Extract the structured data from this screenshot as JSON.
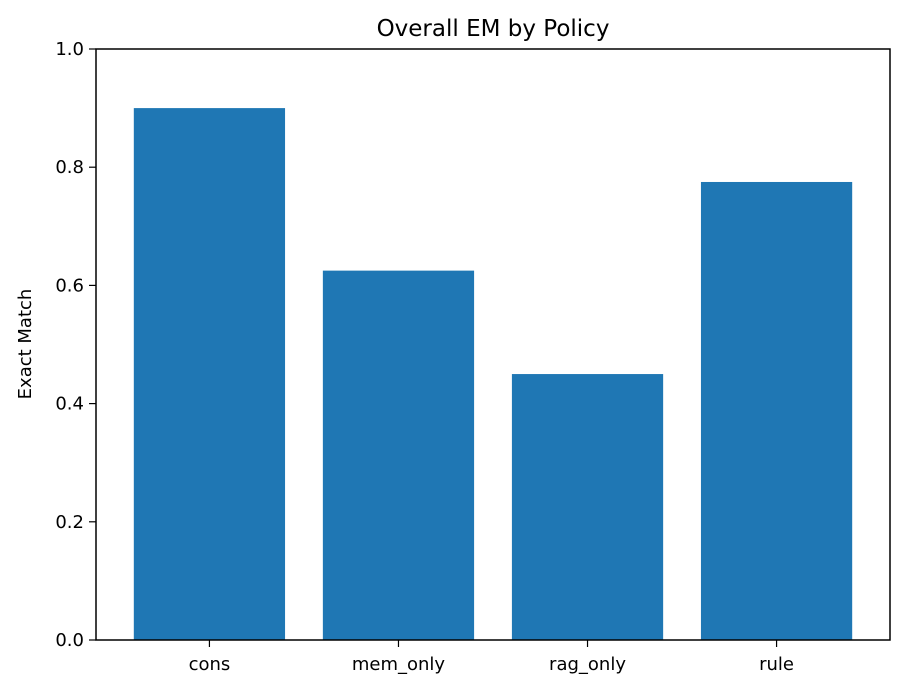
{
  "chart_data": {
    "type": "bar",
    "title": "Overall EM by Policy",
    "xlabel": "",
    "ylabel": "Exact Match",
    "categories": [
      "cons",
      "mem_only",
      "rag_only",
      "rule"
    ],
    "values": [
      0.9,
      0.625,
      0.45,
      0.775
    ],
    "ylim": [
      0.0,
      1.0
    ],
    "yticks": [
      "0.0",
      "0.2",
      "0.4",
      "0.6",
      "0.8",
      "1.0"
    ],
    "bar_color": "#1f77b4",
    "grid": false,
    "legend": "none"
  }
}
